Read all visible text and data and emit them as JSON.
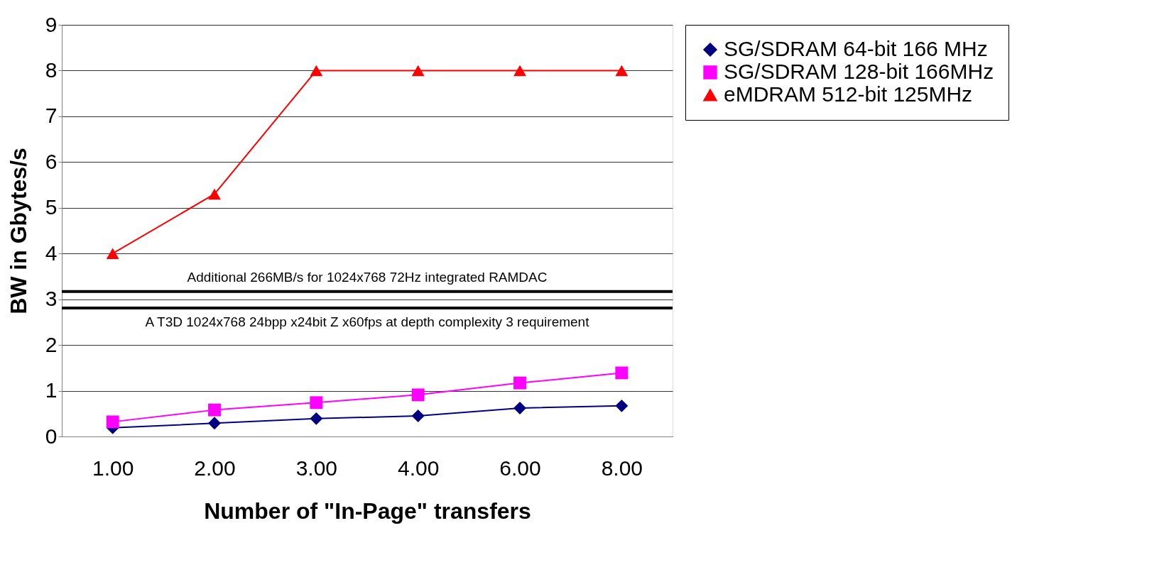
{
  "chart_data": {
    "type": "line",
    "xlabel": "Number of \"In-Page\" transfers",
    "ylabel": "BW in Gbytes/s",
    "categories": [
      "1.00",
      "2.00",
      "3.00",
      "4.00",
      "6.00",
      "8.00"
    ],
    "series": [
      {
        "name": "SG/SDRAM 64-bit 166 MHz",
        "color": "#000080",
        "marker": "diamond",
        "values": [
          0.19,
          0.29,
          0.39,
          0.45,
          0.62,
          0.67
        ]
      },
      {
        "name": "SG/SDRAM 128-bit 166MHz",
        "color": "#ff00ff",
        "marker": "square",
        "values": [
          0.32,
          0.58,
          0.74,
          0.91,
          1.17,
          1.39
        ]
      },
      {
        "name": "eMDRAM 512-bit 125MHz",
        "color": "#ff0000",
        "marker": "triangle",
        "values": [
          4,
          5.3,
          8,
          8,
          8,
          8
        ]
      }
    ],
    "ylim": [
      0,
      9
    ],
    "yticks": [
      0,
      1,
      2,
      3,
      4,
      5,
      6,
      7,
      8,
      9
    ],
    "grid": "y",
    "legend": "right",
    "line_style": "solid",
    "ref_lines": [
      {
        "axis": "y",
        "value": 3.17,
        "label": "Additional 266MB/s for 1024x768 72Hz integrated RAMDAC",
        "color": "#000000"
      },
      {
        "axis": "y",
        "value": 2.81,
        "label": "A T3D 1024x768 24bpp x24bit Z  x60fps at depth complexity 3 requirement",
        "color": "#000000"
      }
    ]
  }
}
